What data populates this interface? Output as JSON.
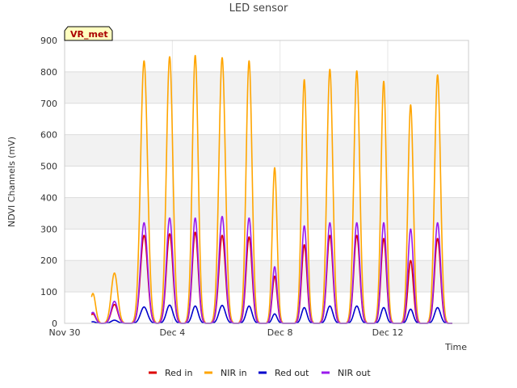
{
  "chart_data": {
    "type": "line",
    "title": "LED sensor",
    "xlabel": "Time",
    "ylabel": "NDVI Channels (mV)",
    "site_label": "VR_met",
    "x_unit": "days since Nov 30",
    "xlim": [
      0,
      15
    ],
    "ylim": [
      0,
      900
    ],
    "yticks": [
      0,
      100,
      200,
      300,
      400,
      500,
      600,
      700,
      800,
      900
    ],
    "xticks": [
      {
        "value": 0,
        "label": "Nov 30"
      },
      {
        "value": 4,
        "label": "Dec 4"
      },
      {
        "value": 8,
        "label": "Dec 8"
      },
      {
        "value": 12,
        "label": "Dec 12"
      }
    ],
    "day_peaks": [
      {
        "day": 1,
        "center": 1.05,
        "width": 0.1,
        "red": 30,
        "nir": 95,
        "red_out": 5,
        "nir_out": 35
      },
      {
        "day": 2,
        "center": 1.85,
        "width": 0.12,
        "red": 60,
        "nir": 160,
        "red_out": 10,
        "nir_out": 70
      },
      {
        "day": 3,
        "center": 2.95,
        "width": 0.13,
        "red": 280,
        "nir": 835,
        "red_out": 52,
        "nir_out": 320
      },
      {
        "day": 4,
        "center": 3.9,
        "width": 0.12,
        "red": 285,
        "nir": 848,
        "red_out": 58,
        "nir_out": 335
      },
      {
        "day": 5,
        "center": 4.85,
        "width": 0.11,
        "red": 290,
        "nir": 852,
        "red_out": 55,
        "nir_out": 335
      },
      {
        "day": 6,
        "center": 5.85,
        "width": 0.12,
        "red": 280,
        "nir": 845,
        "red_out": 57,
        "nir_out": 340
      },
      {
        "day": 7,
        "center": 6.85,
        "width": 0.11,
        "red": 275,
        "nir": 835,
        "red_out": 55,
        "nir_out": 335
      },
      {
        "day": 8,
        "center": 7.8,
        "width": 0.09,
        "red": 150,
        "nir": 495,
        "red_out": 30,
        "nir_out": 180
      },
      {
        "day": 9,
        "center": 8.9,
        "width": 0.1,
        "red": 250,
        "nir": 775,
        "red_out": 50,
        "nir_out": 310
      },
      {
        "day": 10,
        "center": 9.85,
        "width": 0.11,
        "red": 280,
        "nir": 808,
        "red_out": 55,
        "nir_out": 320
      },
      {
        "day": 11,
        "center": 10.85,
        "width": 0.11,
        "red": 280,
        "nir": 803,
        "red_out": 55,
        "nir_out": 320
      },
      {
        "day": 12,
        "center": 11.85,
        "width": 0.1,
        "red": 270,
        "nir": 770,
        "red_out": 50,
        "nir_out": 320
      },
      {
        "day": 13,
        "center": 12.85,
        "width": 0.1,
        "red": 200,
        "nir": 695,
        "red_out": 45,
        "nir_out": 300
      },
      {
        "day": 14,
        "center": 13.85,
        "width": 0.11,
        "red": 270,
        "nir": 790,
        "red_out": 50,
        "nir_out": 320
      }
    ],
    "series": [
      {
        "name": "Red in",
        "key": "red",
        "color": "#dd0000"
      },
      {
        "name": "NIR in",
        "key": "nir",
        "color": "#ffa500"
      },
      {
        "name": "Red out",
        "key": "red_out",
        "color": "#0000cc"
      },
      {
        "name": "NIR out",
        "key": "nir_out",
        "color": "#9a1aee"
      }
    ],
    "data_start_x": 1.0,
    "data_end_x": 14.4,
    "grid": true,
    "legend_position": "bottom"
  }
}
